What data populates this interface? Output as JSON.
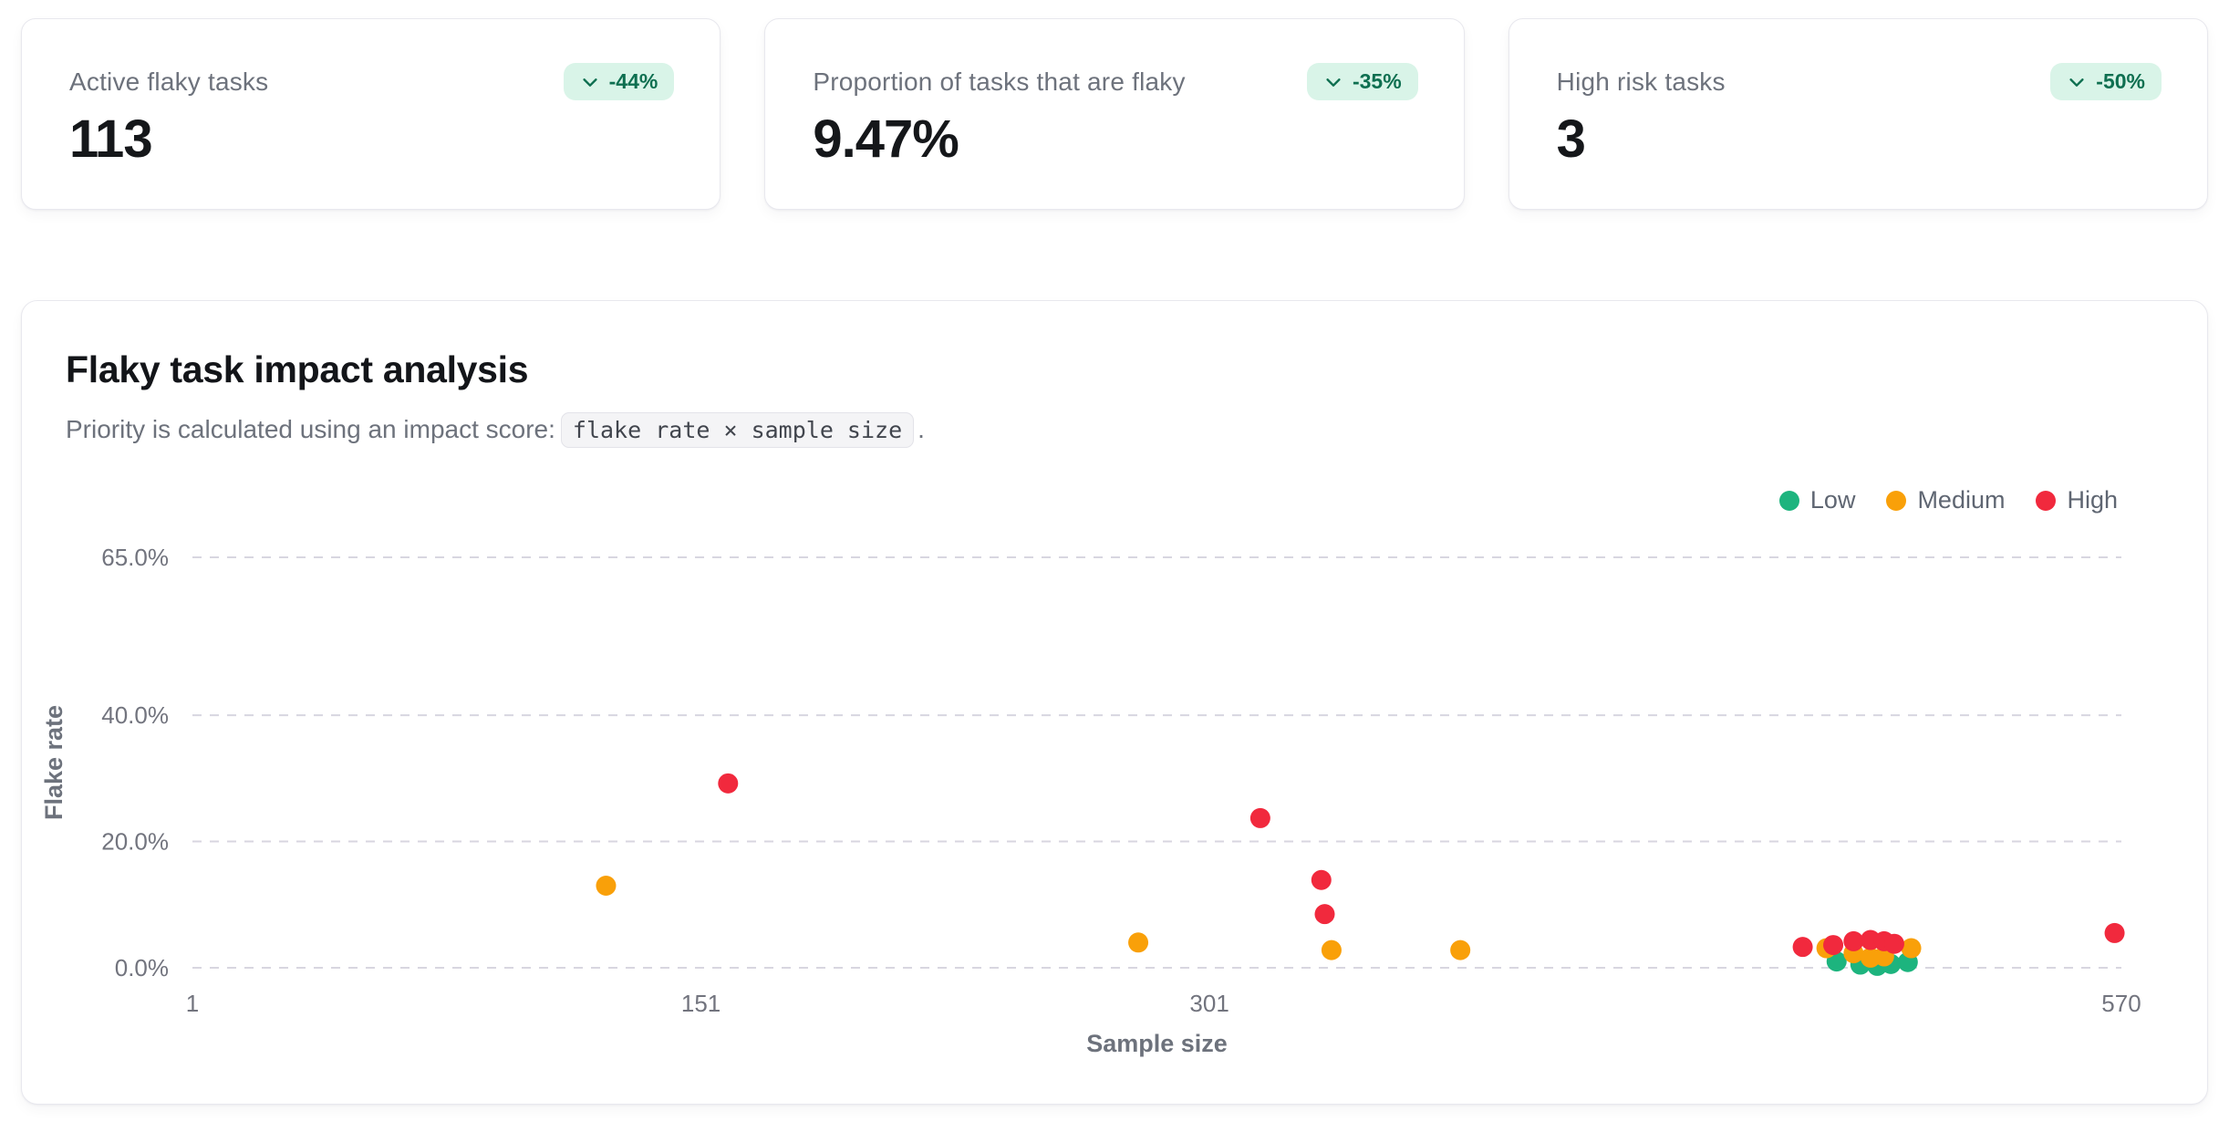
{
  "stats": [
    {
      "label": "Active flaky tasks",
      "value": "113",
      "delta": "-44%"
    },
    {
      "label": "Proportion of tasks that are flaky",
      "value": "9.47%",
      "delta": "-35%"
    },
    {
      "label": "High risk tasks",
      "value": "3",
      "delta": "-50%"
    }
  ],
  "badge_style": {
    "background": "#d9f4e8",
    "text_color": "#0e6f50"
  },
  "chart_card": {
    "title": "Flaky task impact analysis",
    "subtitle_prefix": "Priority is calculated using an impact score:",
    "subtitle_code": "flake rate × sample size",
    "subtitle_suffix": "."
  },
  "chart_data": {
    "type": "scatter",
    "title": "Flaky task impact analysis",
    "xlabel": "Sample size",
    "ylabel": "Flake rate",
    "xlim": [
      1,
      570
    ],
    "ylim": [
      0,
      65
    ],
    "x_ticks": [
      {
        "value": 1,
        "label": "1"
      },
      {
        "value": 151,
        "label": "151"
      },
      {
        "value": 301,
        "label": "301"
      },
      {
        "value": 570,
        "label": "570"
      }
    ],
    "y_ticks": [
      {
        "value": 0,
        "label": "0.0%"
      },
      {
        "value": 20,
        "label": "20.0%"
      },
      {
        "value": 40,
        "label": "40.0%"
      },
      {
        "value": 65,
        "label": "65.0%"
      }
    ],
    "grid": "horizontal-dashed",
    "legend_position": "top-right",
    "point_radius": 11,
    "grid_color": "#d8d6e0",
    "tick_color": "#72747e",
    "axis_label_color": "#6d727c",
    "series": [
      {
        "name": "Low",
        "color": "#1db47e",
        "points": [
          [
            486,
            1.0
          ],
          [
            493,
            0.5
          ],
          [
            498,
            0.3
          ],
          [
            502,
            0.6
          ],
          [
            507,
            0.9
          ]
        ]
      },
      {
        "name": "Medium",
        "color": "#f9a009",
        "points": [
          [
            123,
            13.0
          ],
          [
            280,
            4.0
          ],
          [
            337,
            2.8
          ],
          [
            375,
            2.8
          ],
          [
            483,
            3.1
          ],
          [
            491,
            2.3
          ],
          [
            496,
            1.6
          ],
          [
            500,
            1.8
          ],
          [
            508,
            3.1
          ]
        ]
      },
      {
        "name": "High",
        "color": "#f1293d",
        "points": [
          [
            159,
            29.2
          ],
          [
            316,
            23.7
          ],
          [
            334,
            13.9
          ],
          [
            335,
            8.5
          ],
          [
            476,
            3.3
          ],
          [
            485,
            3.6
          ],
          [
            491,
            4.2
          ],
          [
            496,
            4.4
          ],
          [
            500,
            4.2
          ],
          [
            503,
            3.8
          ],
          [
            568,
            5.5
          ]
        ]
      }
    ]
  }
}
